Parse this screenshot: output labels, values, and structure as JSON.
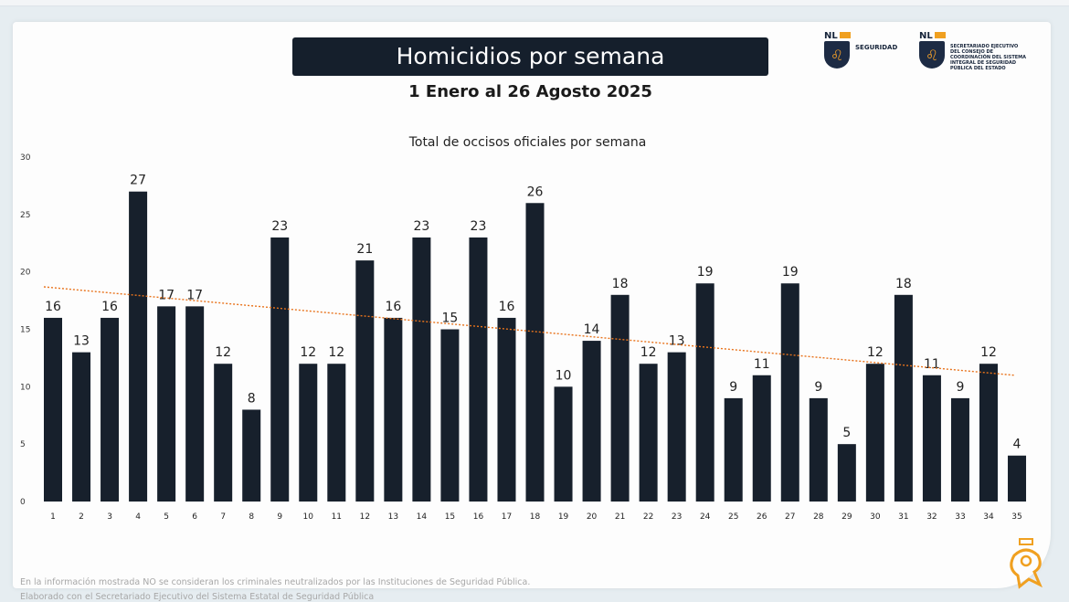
{
  "header": {
    "title": "Homicidios por semana",
    "subtitle": "1 Enero al 26 Agosto 2025"
  },
  "logos": {
    "logo1_nl": "NL",
    "logo1_text": "SEGURIDAD",
    "logo2_nl": "NL",
    "logo2_text": "SECRETARIADO EJECUTIVO DEL CONSEJO DE COORDINACIÓN DEL SISTEMA INTEGRAL DE SEGURIDAD PÚBLICA DEL ESTADO"
  },
  "footer": {
    "note": "En la información mostrada NO se consideran los criminales neutralizados por las Instituciones de Seguridad Pública.",
    "note2": "Elaborado con el Secretariado Ejecutivo del Sistema Estatal de Seguridad Pública"
  },
  "colors": {
    "bar": "#17202c",
    "trend": "#e8731c",
    "title_bg": "#151f2c",
    "accent": "#f0a020"
  },
  "chart_data": {
    "type": "bar",
    "title": "Total de occisos oficiales por semana",
    "xlabel": "",
    "ylabel": "",
    "ylim": [
      0,
      30
    ],
    "yticks": [
      0,
      5,
      10,
      15,
      20,
      25,
      30
    ],
    "grid": false,
    "categories": [
      "1",
      "2",
      "3",
      "4",
      "5",
      "6",
      "7",
      "8",
      "9",
      "10",
      "11",
      "12",
      "13",
      "14",
      "15",
      "16",
      "17",
      "18",
      "19",
      "20",
      "21",
      "22",
      "23",
      "24",
      "25",
      "26",
      "27",
      "28",
      "29",
      "30",
      "31",
      "32",
      "33",
      "34",
      "35"
    ],
    "values": [
      16,
      13,
      16,
      27,
      17,
      17,
      12,
      8,
      23,
      12,
      12,
      21,
      16,
      23,
      15,
      23,
      16,
      26,
      10,
      14,
      18,
      12,
      13,
      19,
      9,
      11,
      19,
      9,
      5,
      12,
      18,
      11,
      9,
      12,
      4
    ],
    "data_labels": true,
    "trendline": {
      "type": "linear",
      "style": "dotted",
      "start": 18.7,
      "end": 11.0
    }
  }
}
